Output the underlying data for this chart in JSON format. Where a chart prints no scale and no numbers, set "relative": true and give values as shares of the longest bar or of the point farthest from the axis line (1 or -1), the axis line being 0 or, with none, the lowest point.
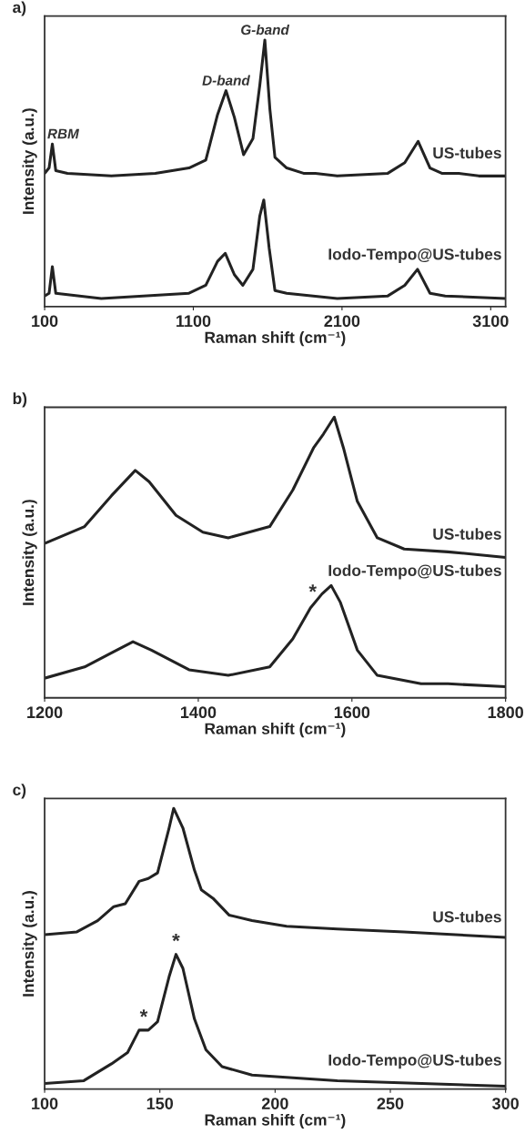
{
  "chart_data": [
    {
      "type": "line",
      "title": "a)",
      "xlabel": "Raman shift (cm⁻¹)",
      "ylabel": "Intensity (a.u.)",
      "relative": true,
      "xlim": [
        100,
        3200
      ],
      "xticks": [
        100,
        1100,
        2100,
        3100
      ],
      "grid": false,
      "series": [
        {
          "name": "US-tubes",
          "color": "#222222",
          "x": [
            100,
            130,
            152,
            175,
            254,
            549,
            844,
            1071,
            1184,
            1263,
            1320,
            1376,
            1438,
            1501,
            1547,
            1581,
            1615,
            1649,
            1728,
            1841,
            1921,
            2068,
            2408,
            2522,
            2612,
            2692,
            2771,
            2885,
            3020,
            3200
          ],
          "values": [
            0.5,
            0.52,
            0.61,
            0.51,
            0.5,
            0.49,
            0.5,
            0.52,
            0.55,
            0.72,
            0.81,
            0.71,
            0.57,
            0.63,
            0.83,
            1.0,
            0.74,
            0.56,
            0.52,
            0.5,
            0.5,
            0.49,
            0.5,
            0.54,
            0.62,
            0.52,
            0.5,
            0.5,
            0.49,
            0.49
          ]
        },
        {
          "name": "Iodo-Tempo@US-tubes",
          "color": "#222222",
          "x": [
            100,
            130,
            152,
            175,
            481,
            1071,
            1184,
            1263,
            1315,
            1376,
            1433,
            1501,
            1547,
            1574,
            1610,
            1649,
            1728,
            2068,
            2408,
            2522,
            2608,
            2692,
            2794,
            3200
          ],
          "values": [
            0.04,
            0.05,
            0.15,
            0.05,
            0.03,
            0.05,
            0.08,
            0.17,
            0.2,
            0.12,
            0.08,
            0.14,
            0.34,
            0.4,
            0.22,
            0.06,
            0.05,
            0.03,
            0.04,
            0.08,
            0.14,
            0.05,
            0.04,
            0.03
          ]
        }
      ],
      "annotations": [
        {
          "text": "RBM",
          "x": 152,
          "y": 0.61
        },
        {
          "text": "D-band",
          "x": 1320,
          "y": 0.81
        },
        {
          "text": "G-band",
          "x": 1581,
          "y": 1.0
        }
      ]
    },
    {
      "type": "line",
      "title": "b)",
      "xlabel": "Raman shift (cm⁻¹)",
      "ylabel": "Intensity (a.u.)",
      "relative": true,
      "xlim": [
        1200,
        1800
      ],
      "xticks": [
        1200,
        1400,
        1600,
        1800
      ],
      "grid": false,
      "series": [
        {
          "name": "US-tubes",
          "color": "#222222",
          "x": [
            1200,
            1252,
            1287,
            1318,
            1336,
            1371,
            1406,
            1439,
            1493,
            1523,
            1550,
            1563,
            1577,
            1589,
            1607,
            1633,
            1668,
            1725,
            1764,
            1800
          ],
          "values": [
            0.55,
            0.61,
            0.72,
            0.81,
            0.77,
            0.65,
            0.59,
            0.57,
            0.61,
            0.74,
            0.89,
            0.94,
            1.0,
            0.89,
            0.7,
            0.57,
            0.53,
            0.52,
            0.51,
            0.5
          ]
        },
        {
          "name": "Iodo-Tempo@US-tubes",
          "color": "#222222",
          "x": [
            1200,
            1252,
            1287,
            1315,
            1339,
            1388,
            1439,
            1493,
            1523,
            1546,
            1561,
            1573,
            1585,
            1607,
            1633,
            1690,
            1725,
            1800
          ],
          "values": [
            0.07,
            0.11,
            0.16,
            0.2,
            0.17,
            0.1,
            0.08,
            0.11,
            0.21,
            0.32,
            0.37,
            0.4,
            0.34,
            0.17,
            0.08,
            0.05,
            0.05,
            0.04
          ]
        }
      ],
      "annotations": [
        {
          "text": "*",
          "x": 1549,
          "y": 0.33
        }
      ]
    },
    {
      "type": "line",
      "title": "c)",
      "xlabel": "Raman shift (cm⁻¹)",
      "ylabel": "Intensity (a.u.)",
      "relative": true,
      "xlim": [
        100,
        300
      ],
      "xticks": [
        100,
        150,
        200,
        250,
        300
      ],
      "grid": false,
      "series": [
        {
          "name": "US-tubes",
          "color": "#222222",
          "x": [
            100,
            114,
            123,
            130,
            135,
            141,
            145,
            149,
            154,
            156,
            160,
            165,
            168,
            173,
            180,
            190,
            205,
            227,
            256,
            300
          ],
          "values": [
            0.55,
            0.56,
            0.6,
            0.65,
            0.66,
            0.74,
            0.75,
            0.77,
            0.93,
            1.0,
            0.93,
            0.78,
            0.71,
            0.68,
            0.62,
            0.6,
            0.58,
            0.57,
            0.56,
            0.54
          ]
        },
        {
          "name": "Iodo-Tempo@US-tubes",
          "color": "#222222",
          "x": [
            100,
            117,
            129,
            136,
            141,
            145,
            149,
            154,
            157,
            160,
            165,
            170,
            177,
            190,
            227,
            300
          ],
          "values": [
            0.02,
            0.03,
            0.09,
            0.13,
            0.21,
            0.21,
            0.24,
            0.4,
            0.48,
            0.43,
            0.25,
            0.14,
            0.08,
            0.05,
            0.03,
            0.01
          ]
        }
      ],
      "annotations": [
        {
          "text": "*",
          "x": 143,
          "y": 0.21
        },
        {
          "text": "*",
          "x": 157,
          "y": 0.48
        }
      ]
    }
  ]
}
